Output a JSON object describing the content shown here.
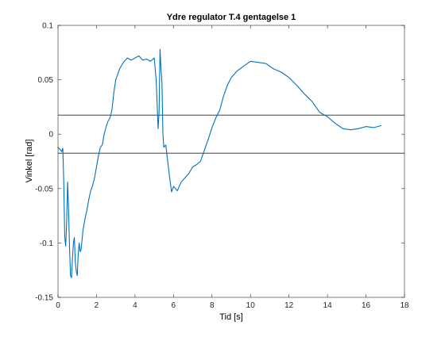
{
  "chart_data": {
    "type": "line",
    "title": "Ydre regulator T.4 gentagelse 1",
    "xlabel": "Tid [s]",
    "ylabel": "Vinkel [rad]",
    "xlim": [
      0,
      18
    ],
    "ylim": [
      -0.15,
      0.1
    ],
    "xticks": [
      0,
      2,
      4,
      6,
      8,
      10,
      12,
      14,
      16,
      18
    ],
    "yticks": [
      -0.15,
      -0.1,
      -0.05,
      0,
      0.05,
      0.1
    ],
    "xtick_labels": [
      "0",
      "2",
      "4",
      "6",
      "8",
      "10",
      "12",
      "14",
      "16",
      "18"
    ],
    "ytick_labels": [
      "-0.15",
      "-0.1",
      "-0.05",
      "0",
      "0.05",
      "0.1"
    ],
    "grid": false,
    "legend": "none",
    "series": [
      {
        "color": "#0072BD",
        "x": [
          0,
          0.1,
          0.2,
          0.25,
          0.3,
          0.35,
          0.4,
          0.45,
          0.5,
          0.55,
          0.6,
          0.65,
          0.7,
          0.75,
          0.8,
          0.85,
          0.9,
          0.95,
          1.0,
          1.05,
          1.1,
          1.15,
          1.2,
          1.3,
          1.4,
          1.5,
          1.6,
          1.7,
          1.8,
          1.9,
          2.0,
          2.1,
          2.2,
          2.3,
          2.4,
          2.5,
          2.6,
          2.7,
          2.8,
          2.9,
          3.0,
          3.2,
          3.4,
          3.6,
          3.8,
          4.0,
          4.2,
          4.4,
          4.6,
          4.8,
          5.0,
          5.1,
          5.2,
          5.25,
          5.3,
          5.35,
          5.4,
          5.45,
          5.5,
          5.6,
          5.7,
          5.8,
          5.9,
          6.0,
          6.2,
          6.4,
          6.6,
          6.8,
          7.0,
          7.2,
          7.4,
          7.6,
          7.8,
          8.0,
          8.2,
          8.4,
          8.6,
          8.8,
          9.0,
          9.3,
          9.6,
          10.0,
          10.4,
          10.8,
          11.2,
          11.6,
          12.0,
          12.4,
          12.8,
          13.2,
          13.6,
          14.0,
          14.4,
          14.8,
          15.2,
          15.6,
          16.0,
          16.4,
          16.8
        ],
        "y": [
          -0.012,
          -0.014,
          -0.016,
          -0.013,
          -0.045,
          -0.095,
          -0.103,
          -0.08,
          -0.044,
          -0.07,
          -0.105,
          -0.13,
          -0.132,
          -0.115,
          -0.1,
          -0.095,
          -0.118,
          -0.126,
          -0.13,
          -0.11,
          -0.1,
          -0.108,
          -0.106,
          -0.088,
          -0.078,
          -0.07,
          -0.06,
          -0.052,
          -0.047,
          -0.04,
          -0.03,
          -0.02,
          -0.012,
          -0.01,
          0.0,
          0.007,
          0.012,
          0.015,
          0.022,
          0.038,
          0.05,
          0.06,
          0.066,
          0.07,
          0.068,
          0.07,
          0.072,
          0.068,
          0.069,
          0.067,
          0.07,
          0.05,
          0.005,
          0.02,
          0.078,
          0.06,
          0.048,
          0.0,
          -0.012,
          -0.01,
          -0.025,
          -0.04,
          -0.053,
          -0.048,
          -0.052,
          -0.044,
          -0.04,
          -0.036,
          -0.03,
          -0.028,
          -0.025,
          -0.015,
          -0.005,
          0.006,
          0.015,
          0.022,
          0.035,
          0.045,
          0.052,
          0.058,
          0.062,
          0.067,
          0.066,
          0.065,
          0.06,
          0.057,
          0.052,
          0.045,
          0.037,
          0.03,
          0.02,
          0.016,
          0.01,
          0.005,
          0.004,
          0.005,
          0.007,
          0.006,
          0.008
        ]
      }
    ],
    "reference_lines": [
      {
        "type": "horizontal",
        "y": 0.0175,
        "color": "#262626"
      },
      {
        "type": "horizontal",
        "y": -0.0175,
        "color": "#262626"
      }
    ]
  }
}
